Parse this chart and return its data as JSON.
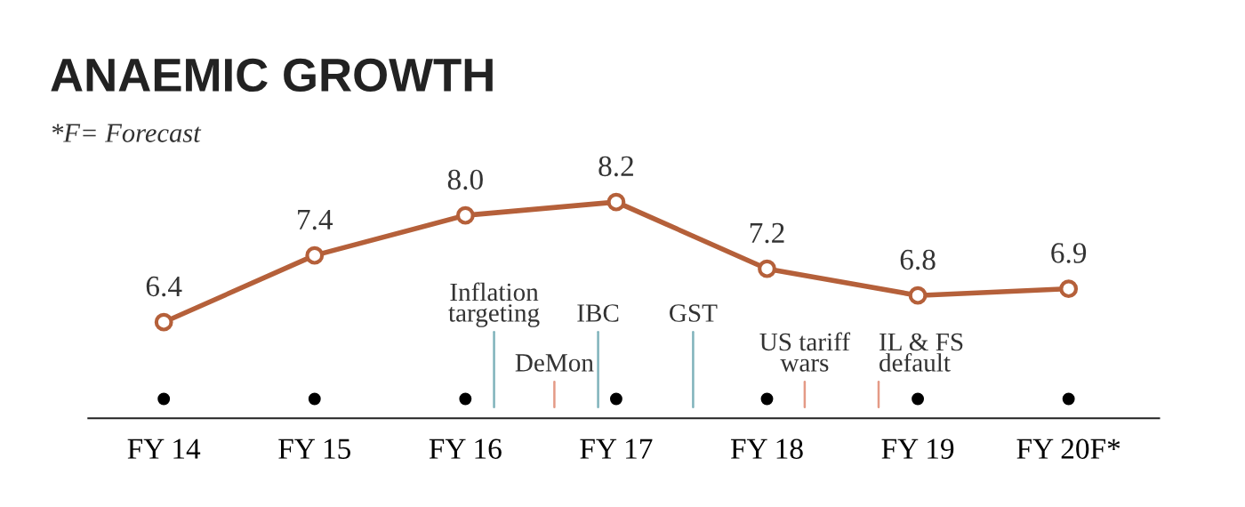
{
  "chart_data": {
    "type": "line",
    "title": "ANAEMIC GROWTH",
    "subtitle": "*F= Forecast",
    "categories": [
      "FY 14",
      "FY 15",
      "FY 16",
      "FY 17",
      "FY 18",
      "FY 19",
      "FY 20F*"
    ],
    "series": [
      {
        "color": "#b5603a",
        "values": [
          6.4,
          7.4,
          8.0,
          8.2,
          7.2,
          6.8,
          6.9
        ],
        "value_labels": [
          "6.4",
          "7.4",
          "8.0",
          "8.2",
          "7.2",
          "6.8",
          "6.9"
        ]
      }
    ],
    "marker": "circle",
    "line_style": "solid",
    "grid": false,
    "tick_labels": "x",
    "annotations": [
      "Inflation\ntargeting",
      "DeMon",
      "IBC",
      "GST",
      "US tariff\nwars",
      "IL & FS\ndefault"
    ]
  }
}
